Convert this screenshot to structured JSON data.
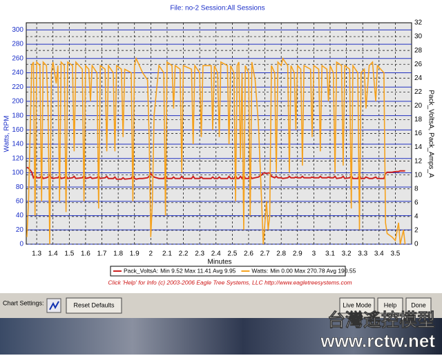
{
  "chart_data": {
    "type": "line",
    "title": "File: no-2   Session:All Sessions",
    "x_label": "Minutes",
    "y_label": "Watts, RPM",
    "y2_label": "Pack_VoltsA, Pack_Amps_A",
    "x": [
      1.24,
      1.25,
      1.27,
      1.28,
      1.29,
      1.3,
      1.32,
      1.33,
      1.34,
      1.36,
      1.37,
      1.38,
      1.39,
      1.4,
      1.42,
      1.43,
      1.44,
      1.45,
      1.47,
      1.48,
      1.49,
      1.52,
      1.53,
      1.54,
      1.58,
      1.59,
      1.6,
      1.62,
      1.63,
      1.64,
      1.67,
      1.68,
      1.69,
      1.72,
      1.73,
      1.74,
      1.77,
      1.78,
      1.79,
      1.82,
      1.83,
      1.84,
      1.88,
      1.89,
      1.9,
      1.91,
      1.93,
      1.95,
      1.98,
      1.99,
      2.0,
      2.01,
      2.02,
      2.05,
      2.08,
      2.09,
      2.1,
      2.13,
      2.14,
      2.15,
      2.18,
      2.19,
      2.2,
      2.25,
      2.26,
      2.27,
      2.3,
      2.31,
      2.32,
      2.37,
      2.38,
      2.39,
      2.41,
      2.42,
      2.43,
      2.47,
      2.48,
      2.49,
      2.51,
      2.52,
      2.53,
      2.54,
      2.55,
      2.56,
      2.57,
      2.58,
      2.6,
      2.61,
      2.62,
      2.64,
      2.66,
      2.68,
      2.69,
      2.7,
      2.71,
      2.72,
      2.73,
      2.74,
      2.76,
      2.77,
      2.78,
      2.8,
      2.81,
      2.84,
      2.85,
      2.86,
      2.88,
      2.89,
      2.9,
      2.92,
      2.93,
      2.94,
      2.98,
      2.99,
      3.0,
      3.03,
      3.04,
      3.05,
      3.08,
      3.09,
      3.1,
      3.12,
      3.13,
      3.14,
      3.17,
      3.18,
      3.19,
      3.22,
      3.23,
      3.24,
      3.27,
      3.28,
      3.29,
      3.31,
      3.32,
      3.34,
      3.36,
      3.38,
      3.39,
      3.41,
      3.43,
      3.44,
      3.45,
      3.48,
      3.5,
      3.52,
      3.53,
      3.55,
      3.56
    ],
    "series": [
      {
        "name": "Pack_VoltsA:",
        "stats": "Min 9.52 Max 11.41 Avg 9.95",
        "color": "#cc2020",
        "axis": "y2",
        "values": [
          11.1,
          11.0,
          10.4,
          9.6,
          9.9,
          9.6,
          9.6,
          9.9,
          9.5,
          9.6,
          9.7,
          10.0,
          9.6,
          9.5,
          9.6,
          9.6,
          9.9,
          9.5,
          9.6,
          9.9,
          9.5,
          9.6,
          9.8,
          9.5,
          9.6,
          9.9,
          9.5,
          9.6,
          9.7,
          9.5,
          9.6,
          9.9,
          9.5,
          9.6,
          9.8,
          9.5,
          9.5,
          9.7,
          9.4,
          9.4,
          9.6,
          9.4,
          9.5,
          9.9,
          9.5,
          9.4,
          9.5,
          9.5,
          9.6,
          9.8,
          10.2,
          9.9,
          9.7,
          9.5,
          9.5,
          9.9,
          9.5,
          9.5,
          9.7,
          9.5,
          9.5,
          9.8,
          9.5,
          9.5,
          9.8,
          9.5,
          9.5,
          9.7,
          9.5,
          9.5,
          9.7,
          9.5,
          9.5,
          9.7,
          9.5,
          9.5,
          9.8,
          9.5,
          9.5,
          9.9,
          9.5,
          9.5,
          9.8,
          9.5,
          10.0,
          9.5,
          9.5,
          9.9,
          9.5,
          9.6,
          9.7,
          10.0,
          10.3,
          10.3,
          10.2,
          10.3,
          10.3,
          9.8,
          9.6,
          9.8,
          9.6,
          9.6,
          9.5,
          9.6,
          9.8,
          9.6,
          9.6,
          9.7,
          9.6,
          9.6,
          9.8,
          9.6,
          9.6,
          9.7,
          9.6,
          9.6,
          9.8,
          9.6,
          9.6,
          9.7,
          9.6,
          9.6,
          9.8,
          9.5,
          9.6,
          9.8,
          9.5,
          9.6,
          9.9,
          9.5,
          9.5,
          10.0,
          9.5,
          9.5,
          9.7,
          9.5,
          9.5,
          9.7,
          9.5,
          9.5,
          9.5,
          10.2,
          10.4,
          10.4,
          10.5,
          10.5,
          10.6,
          10.6,
          10.6
        ]
      },
      {
        "name": "Watts:",
        "stats": "Min 0.00 Max 270.78 Avg 190.55",
        "color": "#f5a21e",
        "axis": "y",
        "values": [
          10,
          60,
          250,
          255,
          40,
          255,
          250,
          60,
          255,
          250,
          190,
          0,
          240,
          255,
          225,
          250,
          60,
          255,
          250,
          45,
          255,
          250,
          130,
          255,
          245,
          60,
          250,
          245,
          200,
          250,
          240,
          50,
          250,
          245,
          130,
          250,
          240,
          130,
          250,
          245,
          150,
          245,
          240,
          60,
          250,
          260,
          250,
          240,
          230,
          150,
          10,
          60,
          180,
          250,
          240,
          40,
          255,
          250,
          190,
          250,
          245,
          100,
          250,
          245,
          140,
          250,
          240,
          150,
          250,
          250,
          160,
          250,
          240,
          150,
          255,
          250,
          140,
          250,
          240,
          60,
          250,
          255,
          120,
          240,
          20,
          250,
          240,
          40,
          255,
          230,
          170,
          60,
          0,
          30,
          60,
          20,
          40,
          250,
          240,
          100,
          255,
          250,
          260,
          250,
          100,
          250,
          240,
          160,
          250,
          245,
          110,
          250,
          245,
          150,
          250,
          245,
          130,
          250,
          245,
          200,
          250,
          240,
          100,
          255,
          250,
          110,
          250,
          245,
          50,
          250,
          240,
          20,
          240,
          245,
          190,
          250,
          255,
          200,
          250,
          245,
          240,
          30,
          15,
          10,
          5,
          30,
          0,
          20,
          0
        ]
      }
    ],
    "xlim": [
      1.236,
      3.6
    ],
    "xticks": [
      1.3,
      1.4,
      1.5,
      1.6,
      1.7,
      1.8,
      1.9,
      2,
      2.1,
      2.2,
      2.3,
      2.4,
      2.5,
      2.6,
      2.7,
      2.8,
      2.9,
      3,
      3.1,
      3.2,
      3.3,
      3.4,
      3.5
    ],
    "ylim": [
      0,
      310
    ],
    "yticks": [
      0,
      20,
      40,
      60,
      80,
      100,
      120,
      140,
      160,
      180,
      200,
      220,
      240,
      260,
      280,
      300
    ],
    "y2lim": [
      0,
      32
    ],
    "y2ticks": [
      0,
      2,
      4,
      6,
      8,
      10,
      12,
      14,
      16,
      18,
      20,
      22,
      24,
      26,
      28,
      30,
      32
    ],
    "grid": true,
    "y_grid_color": "#2030c0",
    "y2_grid_color": "#000000",
    "x_grid_color": "#000000",
    "footer": "Click 'Help' for Info  (c) 2003-2006 Eagle Tree Systems, LLC     http://www.eagletreesystems.com"
  },
  "ui": {
    "chart_settings": "Chart Settings:",
    "reset": "Reset Defaults",
    "live": "Live Mode",
    "help": "Help",
    "done": "Done",
    "watermark_cn": "台灣遙控模型",
    "watermark_url": "www.rctw.net"
  }
}
